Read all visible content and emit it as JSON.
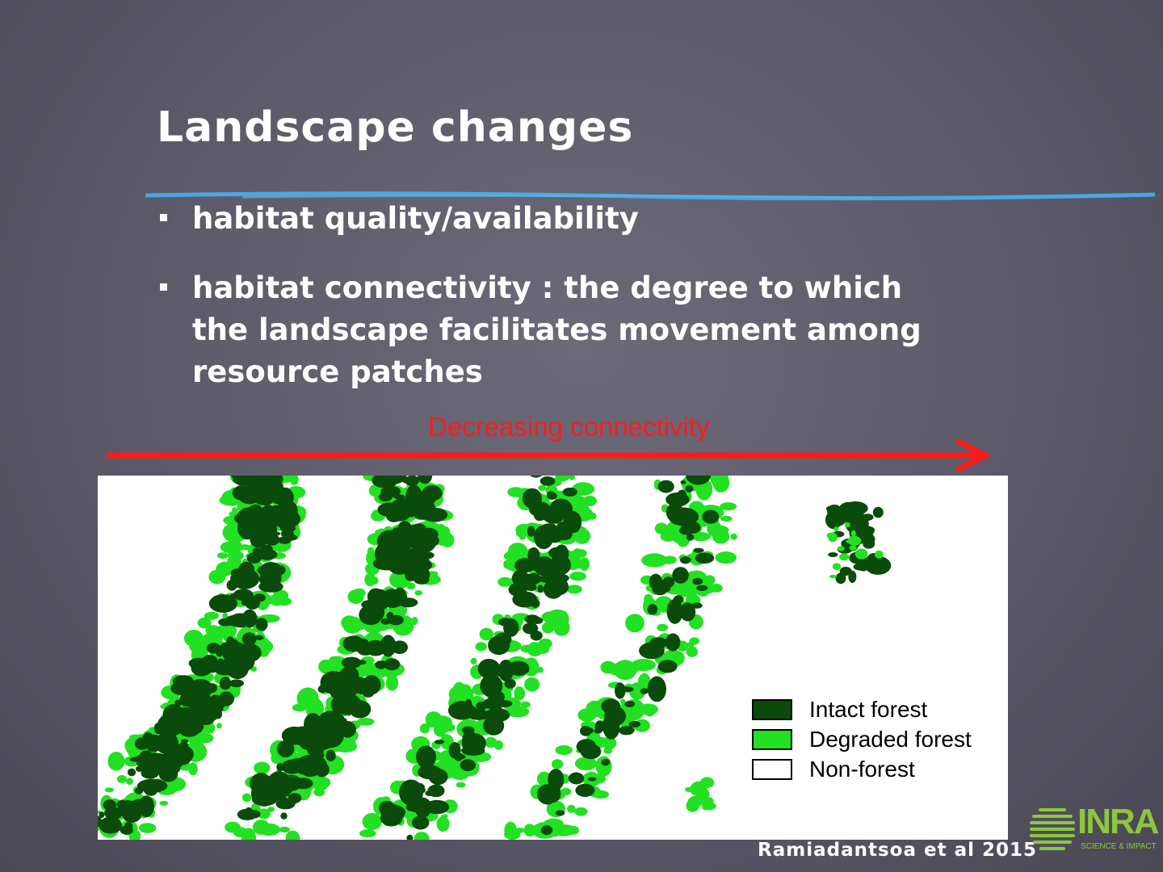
{
  "slide": {
    "title": "Landscape changes",
    "bullets": [
      {
        "text": "habitat quality/availability"
      },
      {
        "text": "habitat connectivity : the degree to which the landscape facilitates movement among resource patches"
      }
    ]
  },
  "figure": {
    "arrow_label": "Decreasing connectivity",
    "legend": [
      {
        "label": "Intact forest",
        "color": "#0a4a0a"
      },
      {
        "label": "Degraded forest",
        "color": "#22e022"
      },
      {
        "label": "Non-forest",
        "color": "#ffffff"
      }
    ]
  },
  "citation": "Ramiadantsoa et al 2015",
  "logo": {
    "name": "INRA",
    "tagline": "SCIENCE & IMPACT"
  },
  "colors": {
    "arrow": "#ff1a1a",
    "rule": "#4aa8e0",
    "logo": "#8dc63f"
  }
}
